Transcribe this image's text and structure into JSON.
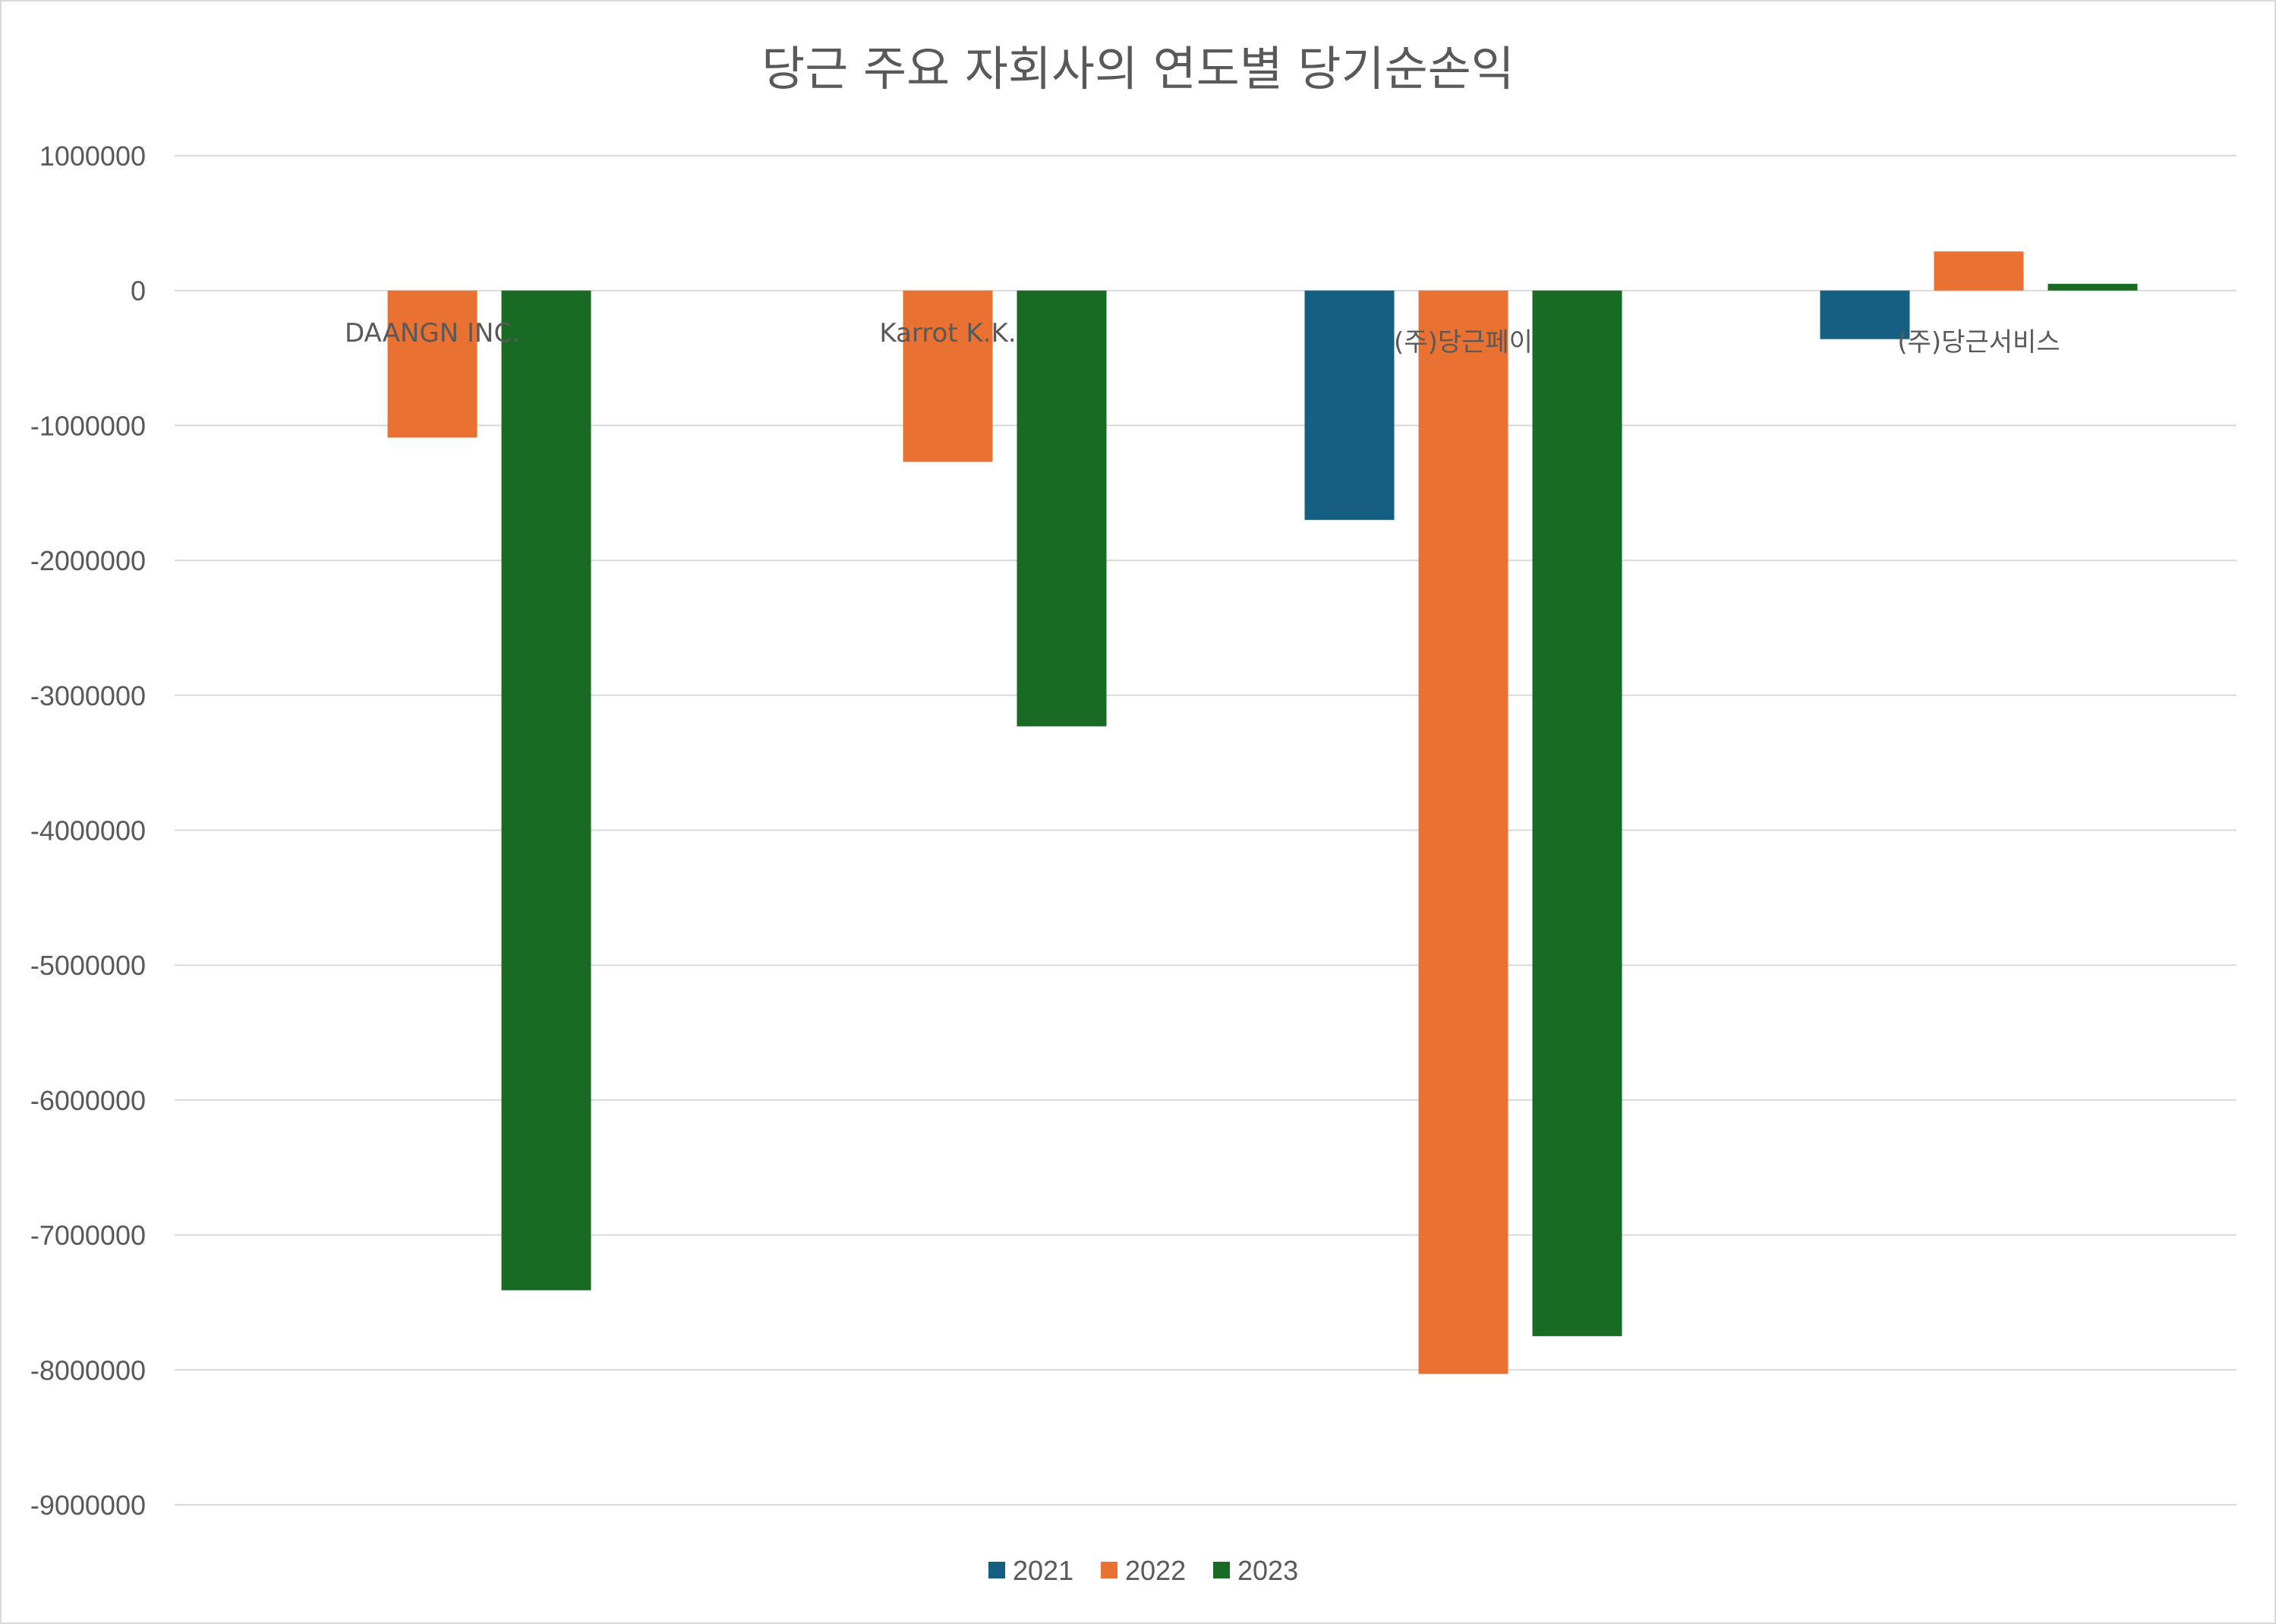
{
  "chart_data": {
    "type": "bar",
    "title": "당근 주요 자회사의 연도별 당기순손익",
    "categories": [
      "DAANGN INC.",
      "Karrot K.K.",
      "(주)당근페이",
      "(주)당근서비스"
    ],
    "series": [
      {
        "name": "2021",
        "color": "#156082",
        "values": [
          0,
          0,
          -1700000,
          -360000
        ]
      },
      {
        "name": "2022",
        "color": "#E97132",
        "values": [
          -1090000,
          -1270000,
          -8030000,
          290000
        ]
      },
      {
        "name": "2023",
        "color": "#196B24",
        "values": [
          -7410000,
          -3230000,
          -7750000,
          50000
        ]
      }
    ],
    "ylim": [
      -9000000,
      1000000
    ],
    "yticks": [
      "1000000",
      "0",
      "-1000000",
      "-2000000",
      "-3000000",
      "-4000000",
      "-5000000",
      "-6000000",
      "-7000000",
      "-8000000",
      "-9000000"
    ],
    "ytick_values": [
      1000000,
      0,
      -1000000,
      -2000000,
      -3000000,
      -4000000,
      -5000000,
      -6000000,
      -7000000,
      -8000000,
      -9000000
    ],
    "grid": true,
    "legend_position": "bottom"
  }
}
